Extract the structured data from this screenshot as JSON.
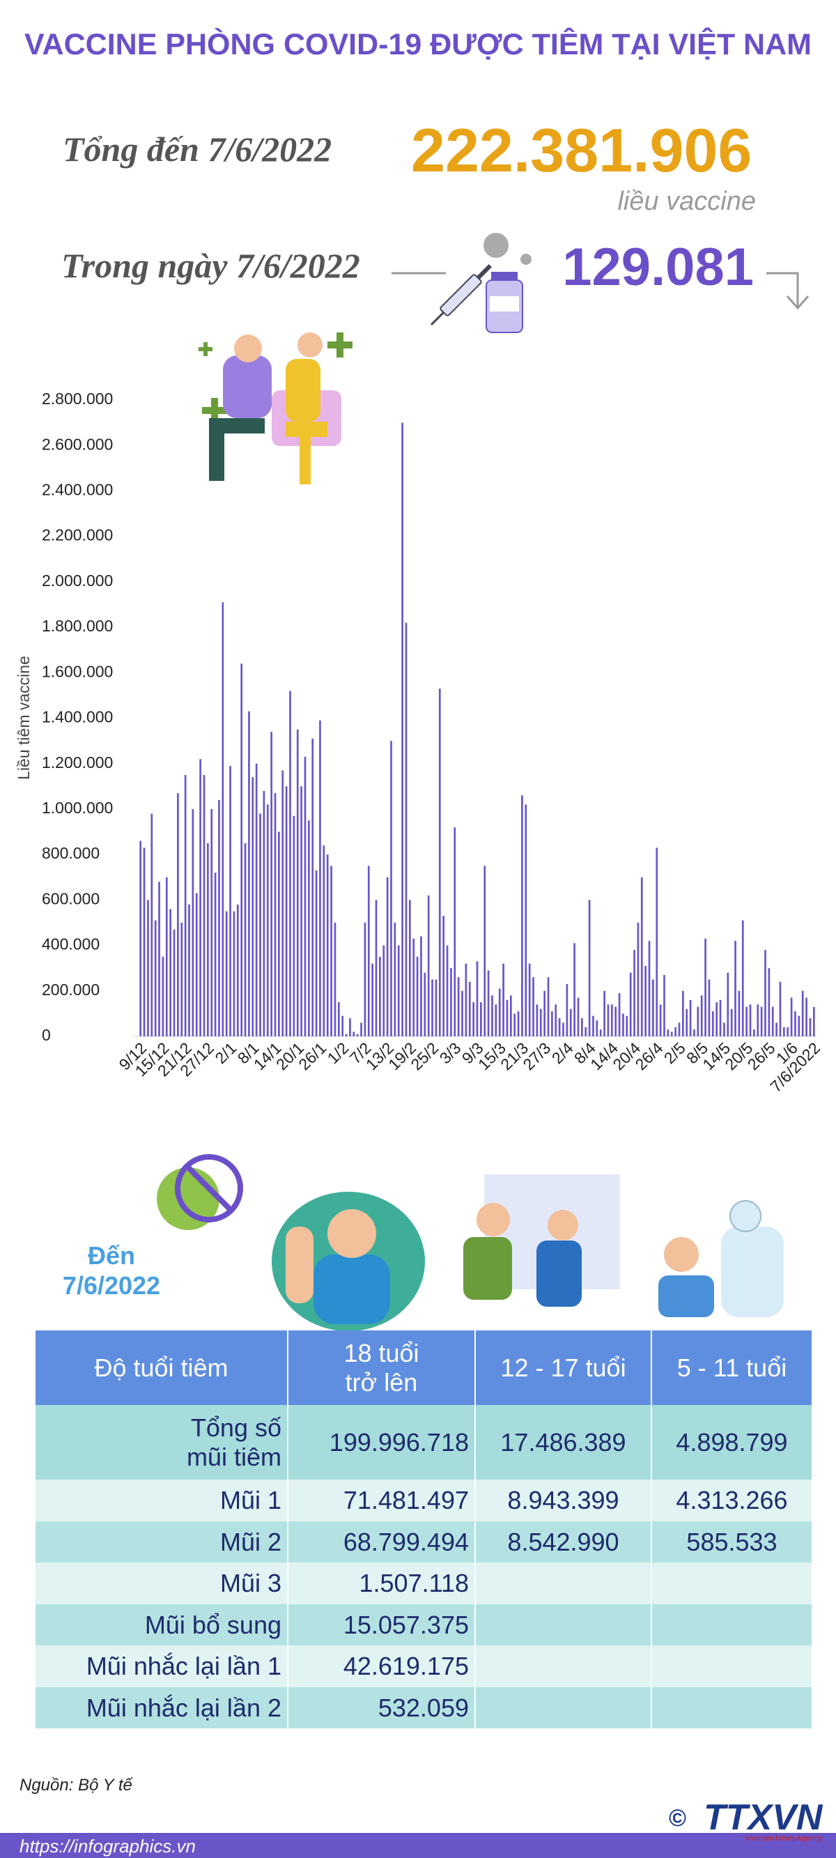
{
  "header": {
    "title": "VACCINE PHÒNG COVID-19 ĐƯỢC TIÊM TẠI VIỆT NAM",
    "total_label": "Tổng đến 7/6/2022",
    "total_value": "222.381.906",
    "total_unit": "liều vaccine",
    "day_label": "Trong ngày 7/6/2022",
    "day_value": "129.081"
  },
  "chart_data": {
    "type": "bar",
    "y_label": "Liều tiêm vaccine",
    "color": "#6a55c8",
    "categories": [
      "9/12",
      null,
      null,
      null,
      null,
      null,
      "15/12",
      null,
      null,
      null,
      null,
      null,
      "21/12",
      null,
      null,
      null,
      null,
      null,
      "27/12",
      null,
      null,
      null,
      null,
      null,
      "2/1",
      null,
      null,
      null,
      null,
      null,
      "8/1",
      null,
      null,
      null,
      null,
      null,
      "14/1",
      null,
      null,
      null,
      null,
      null,
      "20/1",
      null,
      null,
      null,
      null,
      null,
      "26/1",
      null,
      null,
      null,
      null,
      null,
      "1/2",
      null,
      null,
      null,
      null,
      null,
      "7/2",
      null,
      null,
      null,
      null,
      null,
      "13/2",
      null,
      null,
      null,
      null,
      null,
      "19/2",
      null,
      null,
      null,
      null,
      null,
      "25/2",
      null,
      null,
      null,
      null,
      null,
      "3/3",
      null,
      null,
      null,
      null,
      null,
      "9/3",
      null,
      null,
      null,
      null,
      null,
      "15/3",
      null,
      null,
      null,
      null,
      null,
      "21/3",
      null,
      null,
      null,
      null,
      null,
      "27/3",
      null,
      null,
      null,
      null,
      null,
      "2/4",
      null,
      null,
      null,
      null,
      null,
      "8/4",
      null,
      null,
      null,
      null,
      null,
      "14/4",
      null,
      null,
      null,
      null,
      null,
      "20/4",
      null,
      null,
      null,
      null,
      null,
      "26/4",
      null,
      null,
      null,
      null,
      null,
      "2/5",
      null,
      null,
      null,
      null,
      null,
      "8/5",
      null,
      null,
      null,
      null,
      null,
      "14/5",
      null,
      null,
      null,
      null,
      null,
      "20/5",
      null,
      null,
      null,
      null,
      null,
      "26/5",
      null,
      null,
      null,
      null,
      null,
      "1/6",
      null,
      null,
      null,
      null,
      null,
      "7/6/2022"
    ],
    "values": [
      860000,
      830000,
      600000,
      980000,
      510000,
      680000,
      350000,
      700000,
      560000,
      470000,
      1070000,
      500000,
      1150000,
      580000,
      1000000,
      630000,
      1220000,
      1150000,
      850000,
      1000000,
      720000,
      1040000,
      1910000,
      550000,
      1190000,
      550000,
      580000,
      1640000,
      850000,
      1430000,
      1140000,
      1200000,
      980000,
      1080000,
      1020000,
      1340000,
      1070000,
      900000,
      1170000,
      1100000,
      1520000,
      970000,
      1350000,
      1100000,
      1230000,
      950000,
      1310000,
      730000,
      1390000,
      840000,
      800000,
      750000,
      500000,
      150000,
      90000,
      10000,
      80000,
      20000,
      10000,
      60000,
      500000,
      750000,
      320000,
      600000,
      350000,
      400000,
      700000,
      1300000,
      500000,
      400000,
      2700000,
      1820000,
      600000,
      430000,
      350000,
      440000,
      280000,
      620000,
      250000,
      250000,
      1530000,
      530000,
      400000,
      300000,
      920000,
      260000,
      200000,
      320000,
      240000,
      150000,
      330000,
      150000,
      750000,
      290000,
      180000,
      140000,
      210000,
      320000,
      160000,
      180000,
      100000,
      110000,
      1060000,
      1020000,
      320000,
      260000,
      140000,
      120000,
      200000,
      260000,
      110000,
      140000,
      80000,
      60000,
      230000,
      120000,
      410000,
      170000,
      80000,
      40000,
      600000,
      90000,
      70000,
      30000,
      200000,
      140000,
      140000,
      130000,
      190000,
      100000,
      90000,
      280000,
      380000,
      500000,
      700000,
      310000,
      420000,
      250000,
      830000,
      140000,
      270000,
      30000,
      20000,
      40000,
      60000,
      200000,
      120000,
      160000,
      30000,
      130000,
      180000,
      430000,
      250000,
      110000,
      150000,
      160000,
      60000,
      280000,
      120000,
      420000,
      200000,
      510000,
      130000,
      140000,
      30000,
      140000,
      130000,
      380000,
      300000,
      130000,
      60000,
      240000,
      40000,
      40000,
      170000,
      110000,
      90000,
      200000,
      170000,
      80000,
      129081
    ],
    "ylim": [
      0,
      2800000
    ],
    "yticks": [
      0,
      {
        "value": 200000,
        "label": "200.000"
      },
      {
        "value": 400000,
        "label": "400.000"
      },
      {
        "value": 600000,
        "label": "600.000"
      },
      {
        "value": 800000,
        "label": "800.000"
      },
      {
        "value": 1000000,
        "label": "1.000.000"
      },
      {
        "value": 1200000,
        "label": "1.200.000"
      },
      {
        "value": 1400000,
        "label": "1.400.000"
      },
      {
        "value": 1600000,
        "label": "1.600.000"
      },
      {
        "value": 1800000,
        "label": "1.800.000"
      },
      {
        "value": 2000000,
        "label": "2.000.000"
      },
      {
        "value": 2200000,
        "label": "2.200.000"
      },
      {
        "value": 2400000,
        "label": "2.400.000"
      },
      {
        "value": 2600000,
        "label": "2.600.000"
      },
      {
        "value": 2800000,
        "label": "2.800.000"
      }
    ],
    "grid": false
  },
  "table": {
    "date_label": "Đến\n7/6/2022",
    "header": [
      "Độ tuổi tiêm",
      "18 tuổi\ntrở lên",
      "12 - 17 tuổi",
      "5 - 11 tuổi"
    ],
    "rows": [
      [
        "Tổng số\nmũi tiêm",
        "199.996.718",
        "17.486.389",
        "4.898.799"
      ],
      [
        "Mũi 1",
        "71.481.497",
        "8.943.399",
        "4.313.266"
      ],
      [
        "Mũi 2",
        "68.799.494",
        "8.542.990",
        "585.533"
      ],
      [
        "Mũi 3",
        "1.507.118"
      ],
      [
        "Mũi bổ sung",
        "15.057.375"
      ],
      [
        "Mũi nhắc lại lần 1",
        "42.619.175"
      ],
      [
        "Mũi nhắc lại lần 2",
        "532.059"
      ]
    ]
  },
  "footer": {
    "source": "Nguồn: Bộ Y tế",
    "url": "https://infographics.vn",
    "copyright": "©",
    "logo": "TTXVN",
    "agency": "Vietnam News Agency"
  }
}
